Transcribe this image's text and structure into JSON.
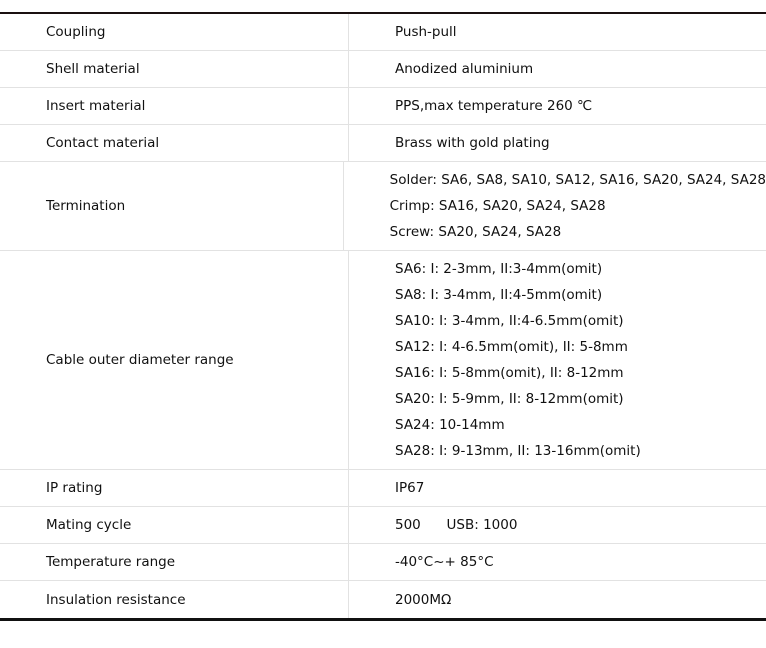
{
  "rows": [
    {
      "label": "Coupling",
      "values": [
        "Push-pull"
      ]
    },
    {
      "label": "Shell material",
      "values": [
        "Anodized aluminium"
      ]
    },
    {
      "label": "Insert  material",
      "values": [
        "PPS,max temperature 260 ℃"
      ]
    },
    {
      "label": "Contact material",
      "values": [
        "Brass with gold plating"
      ]
    },
    {
      "label": "Termination",
      "values": [
        "Solder: SA6, SA8, SA10, SA12, SA16, SA20, SA24, SA28",
        "Crimp: SA16, SA20, SA24, SA28",
        "Screw: SA20, SA24, SA28"
      ]
    },
    {
      "label": "Cable outer diameter range",
      "values": [
        "SA6: I: 2-3mm, II:3-4mm(omit)",
        "SA8: I: 3-4mm, II:4-5mm(omit)",
        "SA10: I: 3-4mm, II:4-6.5mm(omit)",
        "SA12: I: 4-6.5mm(omit), II: 5-8mm",
        "SA16: I: 5-8mm(omit), II: 8-12mm",
        "SA20: I: 5-9mm, II: 8-12mm(omit)",
        "SA24: 10-14mm",
        "SA28: I: 9-13mm, II: 13-16mm(omit)"
      ]
    },
    {
      "label": "IP rating",
      "values": [
        "IP67"
      ]
    },
    {
      "label": "Mating cycle",
      "values": [
        "500      USB: 1000"
      ]
    },
    {
      "label": "Temperature range",
      "values": [
        "-40°C~+ 85°C"
      ]
    },
    {
      "label": "Insulation resistance",
      "values": [
        "2000MΩ"
      ]
    }
  ]
}
